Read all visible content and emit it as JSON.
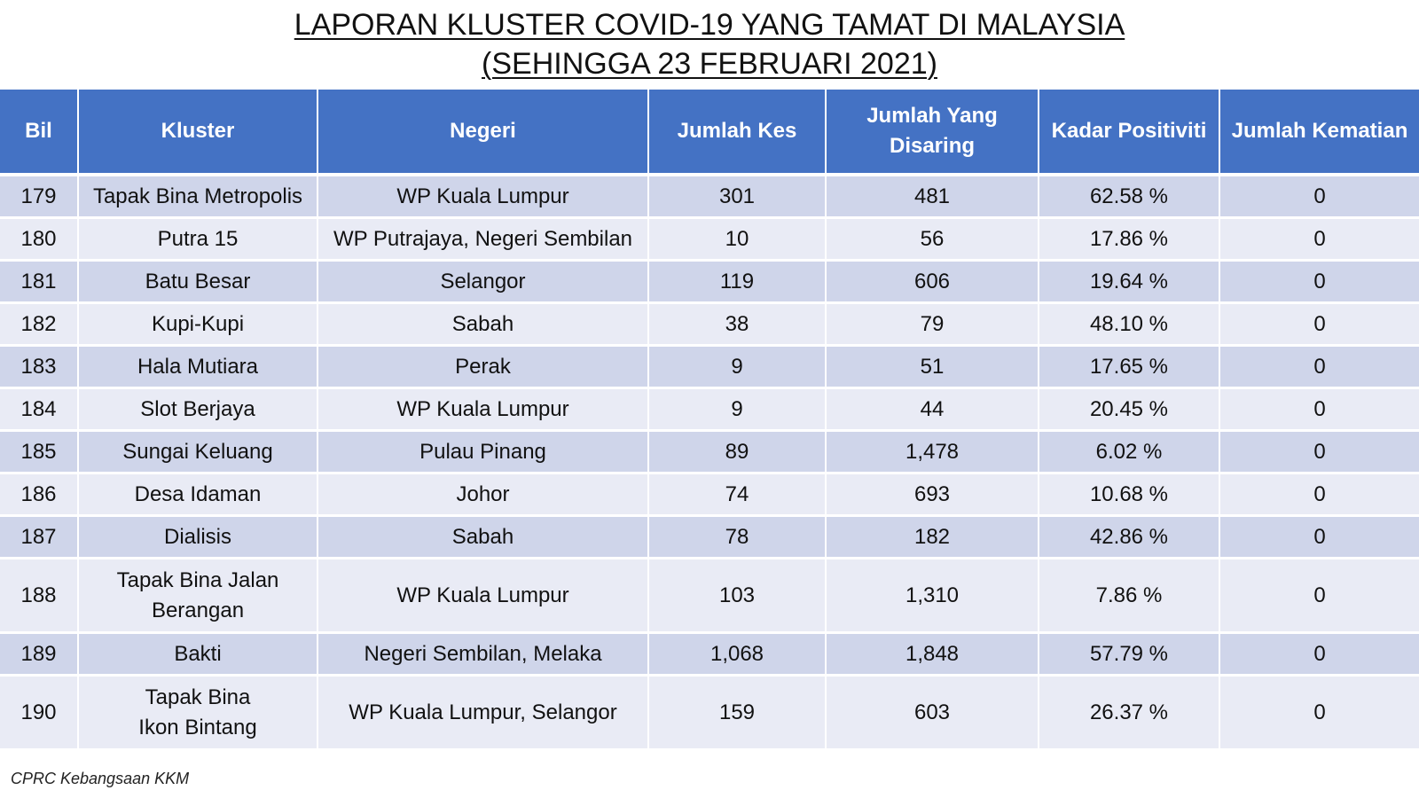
{
  "title": {
    "line1": "LAPORAN KLUSTER COVID-19 YANG TAMAT DI MALAYSIA",
    "line2": "(SEHINGGA  23 FEBRUARI 2021)"
  },
  "table": {
    "headers": {
      "bil": "Bil",
      "kluster": "Kluster",
      "negeri": "Negeri",
      "jumlah_kes": "Jumlah Kes",
      "jumlah_disaring": "Jumlah Yang Disaring",
      "kadar_positiviti": "Kadar Positiviti",
      "jumlah_kematian": "Jumlah Kematian"
    },
    "rows": [
      {
        "bil": "179",
        "kluster": "Tapak Bina Metropolis",
        "negeri": "WP Kuala Lumpur",
        "jumlah_kes": "301",
        "jumlah_disaring": "481",
        "kadar_positiviti": "62.58 %",
        "jumlah_kematian": "0"
      },
      {
        "bil": "180",
        "kluster": "Putra 15",
        "negeri": "WP Putrajaya, Negeri Sembilan",
        "jumlah_kes": "10",
        "jumlah_disaring": "56",
        "kadar_positiviti": "17.86 %",
        "jumlah_kematian": "0"
      },
      {
        "bil": "181",
        "kluster": "Batu Besar",
        "negeri": "Selangor",
        "jumlah_kes": "119",
        "jumlah_disaring": "606",
        "kadar_positiviti": "19.64 %",
        "jumlah_kematian": "0"
      },
      {
        "bil": "182",
        "kluster": "Kupi-Kupi",
        "negeri": "Sabah",
        "jumlah_kes": "38",
        "jumlah_disaring": "79",
        "kadar_positiviti": "48.10 %",
        "jumlah_kematian": "0"
      },
      {
        "bil": "183",
        "kluster": "Hala Mutiara",
        "negeri": "Perak",
        "jumlah_kes": "9",
        "jumlah_disaring": "51",
        "kadar_positiviti": "17.65 %",
        "jumlah_kematian": "0"
      },
      {
        "bil": "184",
        "kluster": "Slot Berjaya",
        "negeri": "WP Kuala Lumpur",
        "jumlah_kes": "9",
        "jumlah_disaring": "44",
        "kadar_positiviti": "20.45 %",
        "jumlah_kematian": "0"
      },
      {
        "bil": "185",
        "kluster": "Sungai Keluang",
        "negeri": "Pulau Pinang",
        "jumlah_kes": "89",
        "jumlah_disaring": "1,478",
        "kadar_positiviti": "6.02 %",
        "jumlah_kematian": "0"
      },
      {
        "bil": "186",
        "kluster": "Desa Idaman",
        "negeri": "Johor",
        "jumlah_kes": "74",
        "jumlah_disaring": "693",
        "kadar_positiviti": "10.68 %",
        "jumlah_kematian": "0"
      },
      {
        "bil": "187",
        "kluster": "Dialisis",
        "negeri": "Sabah",
        "jumlah_kes": "78",
        "jumlah_disaring": "182",
        "kadar_positiviti": "42.86 %",
        "jumlah_kematian": "0"
      },
      {
        "bil": "188",
        "kluster": "Tapak Bina Jalan Berangan",
        "negeri": "WP Kuala Lumpur",
        "jumlah_kes": "103",
        "jumlah_disaring": "1,310",
        "kadar_positiviti": "7.86 %",
        "jumlah_kematian": "0"
      },
      {
        "bil": "189",
        "kluster": "Bakti",
        "negeri": "Negeri Sembilan, Melaka",
        "jumlah_kes": "1,068",
        "jumlah_disaring": "1,848",
        "kadar_positiviti": "57.79 %",
        "jumlah_kematian": "0"
      },
      {
        "bil": "190",
        "kluster": "Tapak Bina Ikon Bintang",
        "negeri": "WP Kuala Lumpur, Selangor",
        "jumlah_kes": "159",
        "jumlah_disaring": "603",
        "kadar_positiviti": "26.37 %",
        "jumlah_kematian": "0"
      }
    ]
  },
  "footer": {
    "source": "CPRC Kebangsaan KKM"
  },
  "colors": {
    "header_bg": "#4472c4",
    "row_odd_bg": "#cfd5ea",
    "row_even_bg": "#e9ebf5"
  }
}
